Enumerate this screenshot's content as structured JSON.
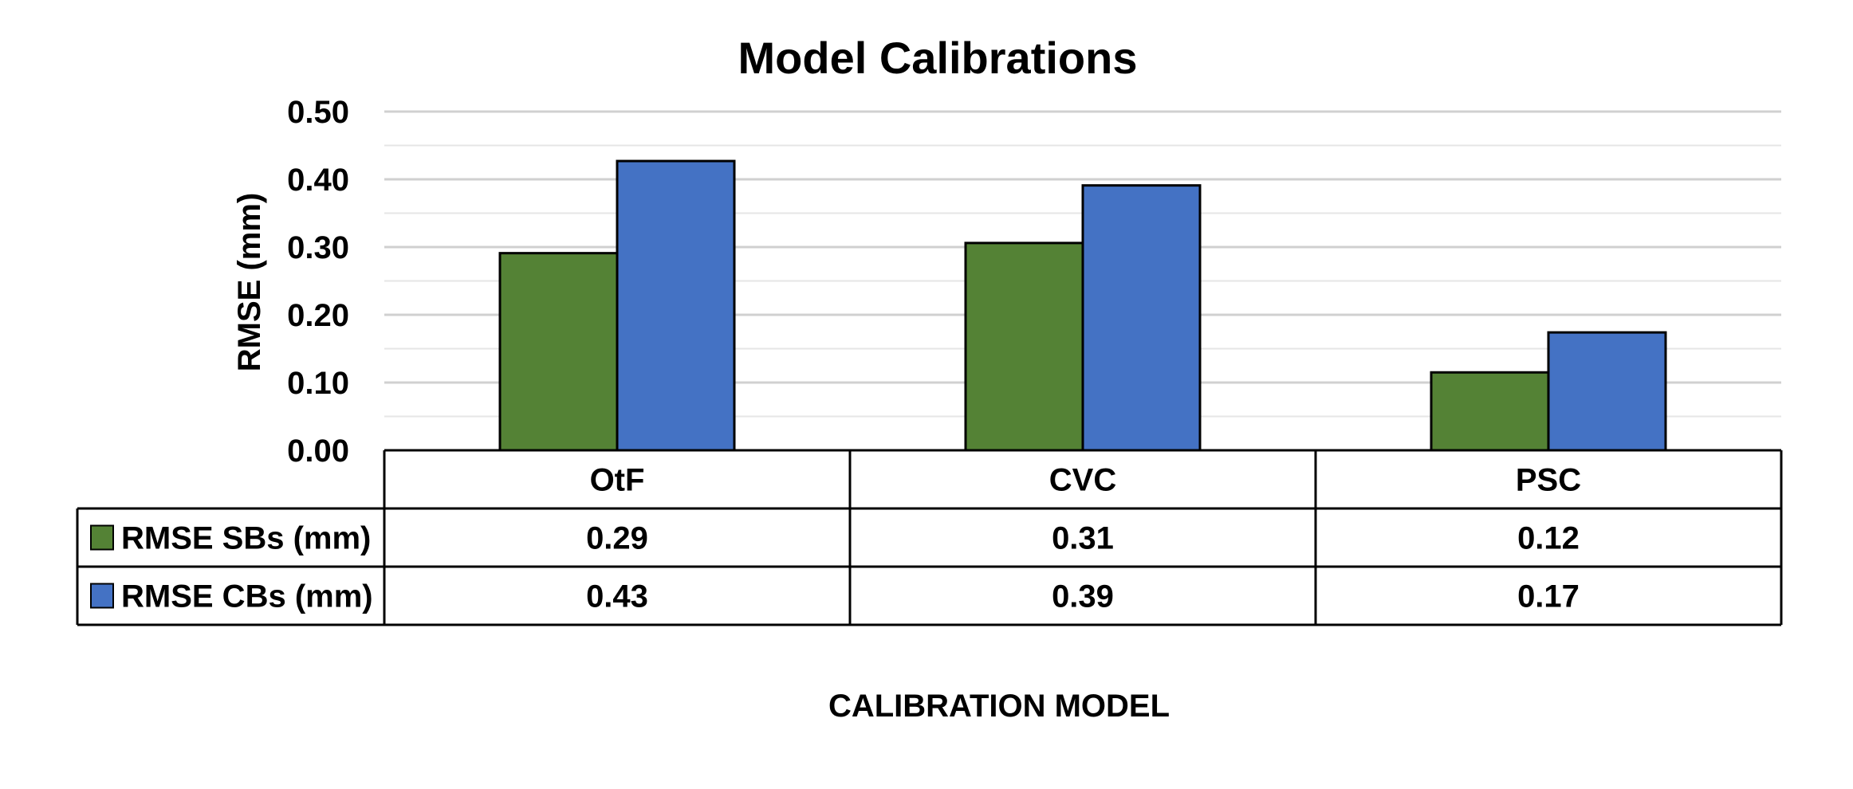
{
  "chart_data": {
    "type": "bar",
    "title": "Model Calibrations",
    "ylabel": "RMSE (mm)",
    "xlabel": "CALIBRATION MODEL",
    "categories": [
      "OtF",
      "CVC",
      "PSC"
    ],
    "series": [
      {
        "name": "RMSE SBs (mm)",
        "color": "#548235",
        "values": [
          0.291,
          0.306,
          0.115
        ],
        "labels": [
          "0.29",
          "0.31",
          "0.12"
        ]
      },
      {
        "name": "RMSE CBs (mm)",
        "color": "#4472C4",
        "values": [
          0.427,
          0.391,
          0.174
        ],
        "labels": [
          "0.43",
          "0.39",
          "0.17"
        ]
      }
    ],
    "ylim": [
      0,
      0.5
    ],
    "yticks": [
      "0.00",
      "0.10",
      "0.20",
      "0.30",
      "0.40",
      "0.50"
    ],
    "grid": true,
    "legend": "data-table",
    "data_table": true
  }
}
